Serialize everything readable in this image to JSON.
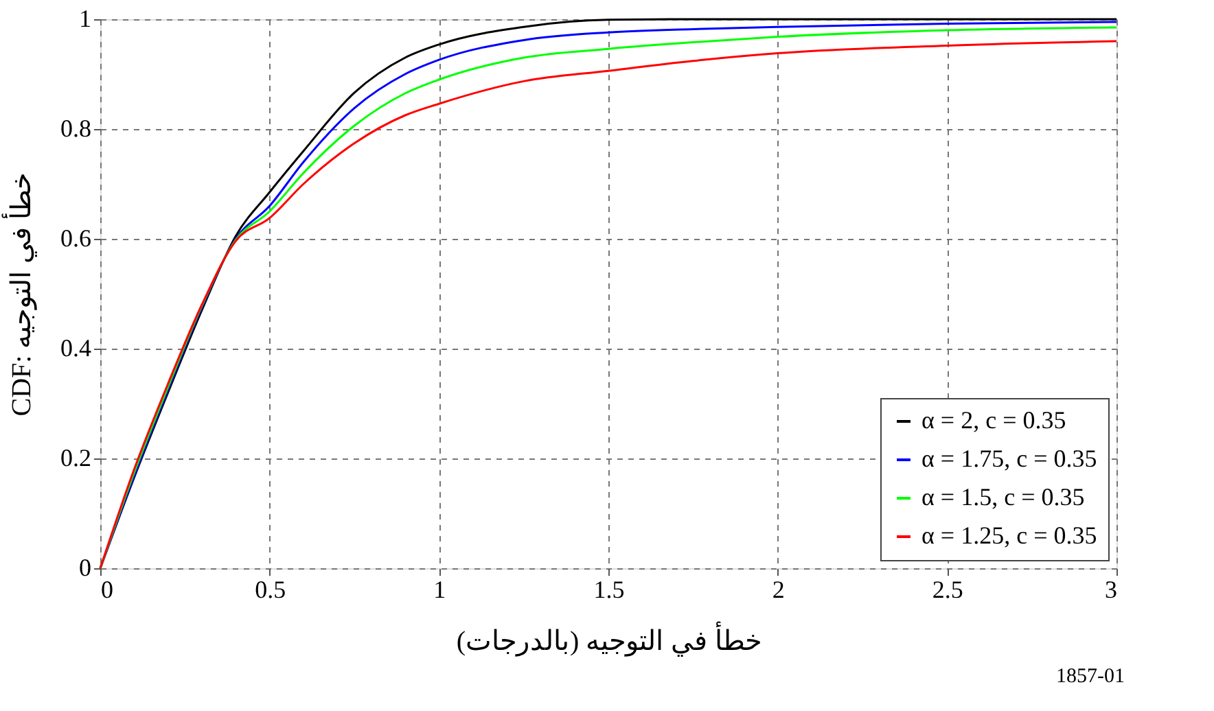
{
  "chart_data": {
    "type": "line",
    "xlabel": "خطأ في التوجيه (بالدرجات)",
    "ylabel": "CDF: خطأ في التوجيه",
    "annotations": [
      "1857-01"
    ],
    "x": [
      0,
      0.1,
      0.2,
      0.3,
      0.4,
      0.5,
      0.6,
      0.75,
      0.9,
      1.0,
      1.25,
      1.5,
      1.75,
      2.0,
      2.5,
      3.0
    ],
    "series": [
      {
        "name": "α = 2, c = 0.35",
        "color": "#000000",
        "values": [
          0,
          0.165,
          0.32,
          0.47,
          0.605,
          0.685,
          0.76,
          0.866,
          0.93,
          0.954,
          0.986,
          0.999,
          1.0,
          1.0,
          1.0,
          1.0
        ]
      },
      {
        "name": "α = 1.75, c = 0.35",
        "color": "#0000ff",
        "values": [
          0,
          0.168,
          0.325,
          0.475,
          0.6,
          0.66,
          0.74,
          0.838,
          0.9,
          0.926,
          0.962,
          0.976,
          0.982,
          0.986,
          0.992,
          0.995
        ]
      },
      {
        "name": "α = 1.5, c = 0.35",
        "color": "#00ff00",
        "values": [
          0,
          0.174,
          0.33,
          0.478,
          0.598,
          0.65,
          0.72,
          0.806,
          0.865,
          0.89,
          0.93,
          0.946,
          0.958,
          0.968,
          0.98,
          0.985
        ]
      },
      {
        "name": "α = 1.25, c = 0.35",
        "color": "#ff0000",
        "values": [
          0,
          0.18,
          0.336,
          0.48,
          0.596,
          0.638,
          0.7,
          0.774,
          0.825,
          0.846,
          0.887,
          0.906,
          0.924,
          0.938,
          0.952,
          0.96
        ]
      }
    ],
    "xlim": [
      0,
      3
    ],
    "xticks": [
      0,
      0.5,
      1,
      1.5,
      2,
      2.5,
      3
    ],
    "ylim": [
      0,
      1
    ],
    "yticks": [
      0,
      0.2,
      0.4,
      0.6,
      0.8,
      1
    ],
    "grid": true,
    "legend": "bottom right",
    "marker": "none",
    "line_style": "solid"
  }
}
